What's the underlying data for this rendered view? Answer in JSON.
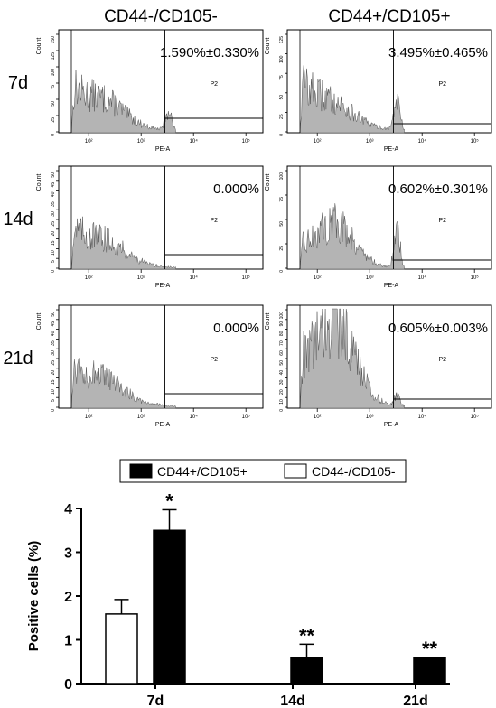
{
  "columns": [
    "CD44-/CD105-",
    "CD44+/CD105+"
  ],
  "rows": [
    "7d",
    "14d",
    "21d"
  ],
  "flow": {
    "xlabel": "PE-A",
    "ylabel": "Count",
    "gate_label": "P2",
    "xticks": [
      {
        "label": "10²",
        "exp": 2
      },
      {
        "label": "10³",
        "exp": 3
      },
      {
        "label": "10⁴",
        "exp": 4
      },
      {
        "label": "10⁵",
        "exp": 5
      }
    ],
    "panels": [
      {
        "row": "7d",
        "column": "CD44-/CD105-",
        "percent": "1.590%±0.330%",
        "ymax": 150,
        "yticks": [
          0,
          25,
          50,
          75,
          100,
          125,
          150
        ]
      },
      {
        "row": "7d",
        "column": "CD44+/CD105+",
        "percent": "3.495%±0.465%",
        "ymax": 125,
        "yticks": [
          0,
          25,
          50,
          75,
          100,
          125
        ]
      },
      {
        "row": "14d",
        "column": "CD44-/CD105-",
        "percent": "0.000%",
        "ymax": 50,
        "yticks": [
          0,
          5,
          10,
          15,
          20,
          25,
          30,
          35,
          40,
          45,
          50
        ]
      },
      {
        "row": "14d",
        "column": "CD44+/CD105+",
        "percent": "0.602%±0.301%",
        "ymax": 100,
        "yticks": [
          0,
          25,
          50,
          75,
          100
        ]
      },
      {
        "row": "21d",
        "column": "CD44-/CD105-",
        "percent": "0.000%",
        "ymax": 50,
        "yticks": [
          0,
          5,
          10,
          15,
          20,
          25,
          30,
          35,
          40,
          45,
          50
        ]
      },
      {
        "row": "21d",
        "column": "CD44+/CD105+",
        "percent": "0.605%±0.003%",
        "ymax": 100,
        "yticks": [
          0,
          10,
          20,
          30,
          40,
          50,
          60,
          70,
          80,
          90,
          100
        ]
      }
    ]
  },
  "chart_data": {
    "type": "bar",
    "categories": [
      "7d",
      "14d",
      "21d"
    ],
    "ylabel": "Positive cells (%)",
    "xlabel": "",
    "ylim": [
      0,
      4
    ],
    "yticks": [
      0,
      1,
      2,
      3,
      4
    ],
    "legend_position": "top",
    "series": [
      {
        "name": "CD44+/CD105+",
        "color": "#000000",
        "values": [
          3.5,
          0.6,
          0.6
        ],
        "errors": [
          0.47,
          0.3,
          0.0
        ],
        "annotations": [
          "*",
          "**",
          "**"
        ]
      },
      {
        "name": "CD44-/CD105-",
        "color": "#ffffff",
        "values": [
          1.59,
          0.0,
          0.0
        ],
        "errors": [
          0.33,
          0.0,
          0.0
        ],
        "annotations": [
          "",
          "",
          ""
        ]
      }
    ]
  }
}
